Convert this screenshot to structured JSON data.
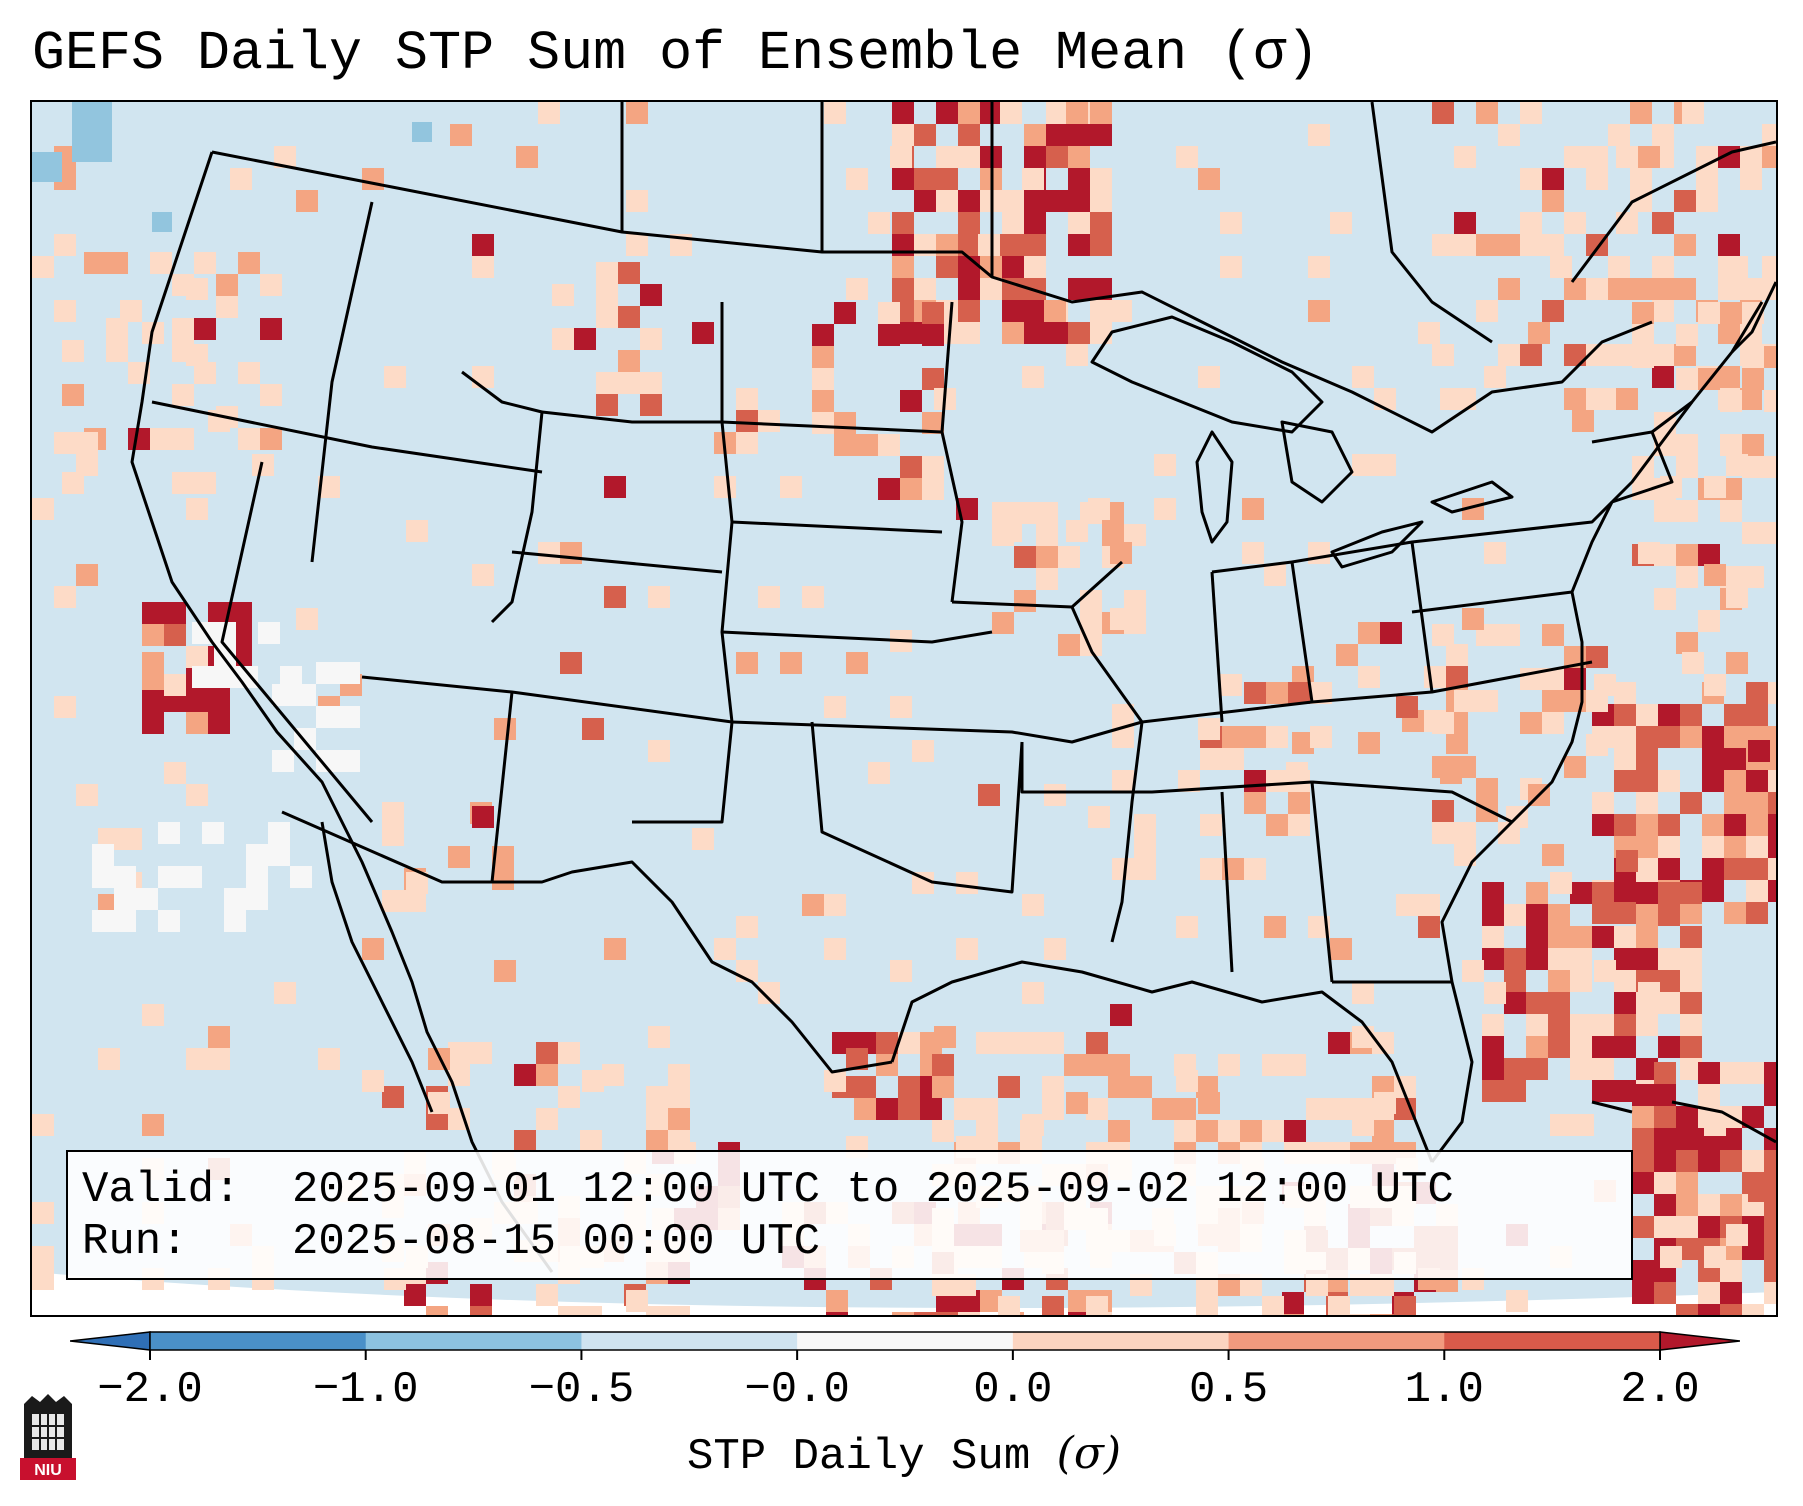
{
  "title": "GEFS Daily STP Sum of Ensemble Mean (σ)",
  "legend": {
    "valid_label": "Valid:",
    "valid_value": "2025-09-01 12:00 UTC to 2025-09-02 12:00 UTC",
    "run_label": "Run:",
    "run_value": "2025-08-15 00:00 UTC"
  },
  "colorbar": {
    "title": "STP Daily Sum",
    "title_symbol": "(σ)",
    "ticks": [
      "−2.0",
      "−1.0",
      "−0.5",
      "−0.0",
      "0.0",
      "0.5",
      "1.0",
      "2.0"
    ],
    "colors": [
      "#4a90c8",
      "#8cc2e0",
      "#cfe3f0",
      "#f7f7f7",
      "#fbd4c0",
      "#f29a7e",
      "#d95a4a"
    ],
    "under_color": "#2f6fb6",
    "over_color": "#b2182b"
  },
  "logo": {
    "text": "NIU"
  },
  "colors": {
    "background": "#d1e5f0",
    "white": "#f7f7f7",
    "light_blue": "#92c5de",
    "peach": "#fddbc7",
    "salmon": "#f4a582",
    "red": "#d6604d",
    "dark_red": "#b2182b"
  }
}
